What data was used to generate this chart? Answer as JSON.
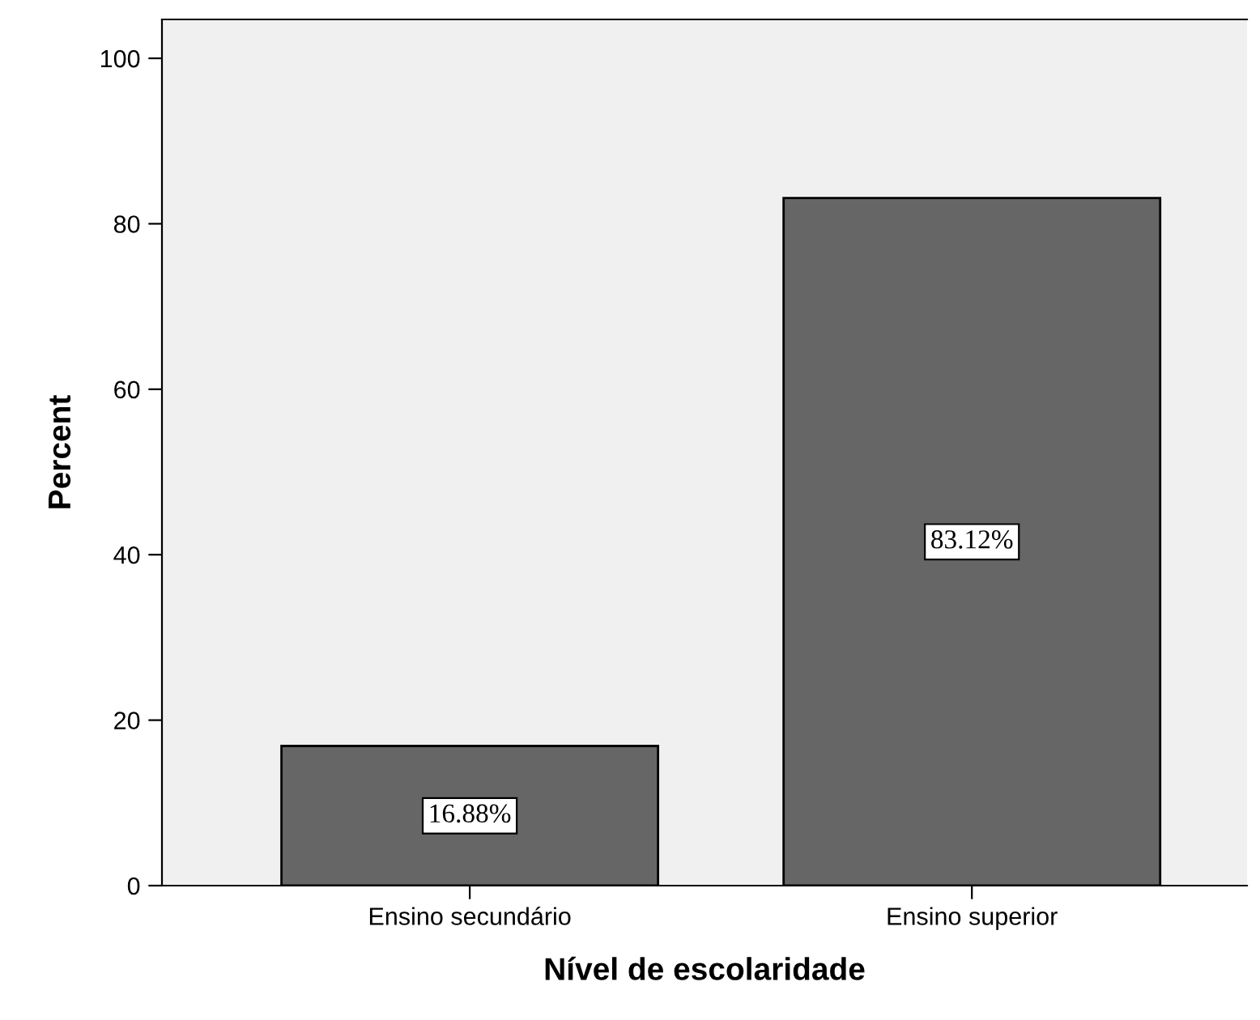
{
  "chart_data": {
    "type": "bar",
    "xlabel": "Nível de escolaridade",
    "ylabel": "Percent",
    "categories": [
      "Ensino secundário",
      "Ensino superior"
    ],
    "values": [
      16.88,
      83.12
    ],
    "value_labels": [
      "16.88%",
      "83.12%"
    ],
    "color": "#666666",
    "ylim": [
      0,
      104.7
    ],
    "yticks": [
      0,
      20,
      40,
      60,
      80,
      100
    ],
    "grid": false,
    "legend": false
  }
}
